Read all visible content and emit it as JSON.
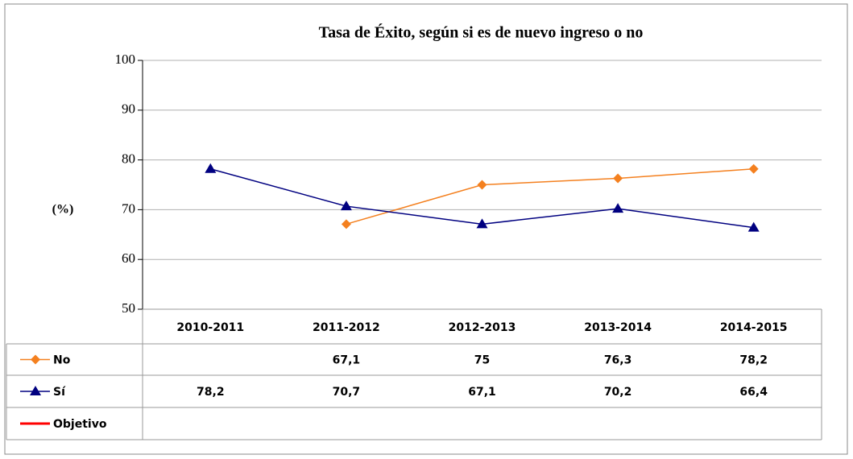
{
  "chart_data": {
    "type": "line",
    "title": "Tasa de Éxito, según si es de nuevo ingreso o no",
    "y_label": "(%)",
    "categories": [
      "2010-2011",
      "2011-2012",
      "2012-2013",
      "2013-2014",
      "2014-2015"
    ],
    "series": [
      {
        "name": "No",
        "color": "#f4801f",
        "marker": "diamond",
        "values": [
          null,
          67.1,
          75,
          76.3,
          78.2
        ],
        "value_labels": [
          null,
          "67,1",
          "75",
          "76,3",
          "78,2"
        ]
      },
      {
        "name": "Sí",
        "color": "#000080",
        "marker": "triangle",
        "values": [
          78.2,
          70.7,
          67.1,
          70.2,
          66.4
        ],
        "value_labels": [
          "78,2",
          "70,7",
          "67,1",
          "70,2",
          "66,4"
        ]
      },
      {
        "name": "Objetivo",
        "color": "#ff0000",
        "marker": "none",
        "values": [
          null,
          null,
          null,
          null,
          null
        ]
      }
    ],
    "ylim": [
      50,
      100
    ],
    "yticks": [
      50,
      60,
      70,
      80,
      90,
      100
    ],
    "grid": true,
    "data_table": true
  }
}
